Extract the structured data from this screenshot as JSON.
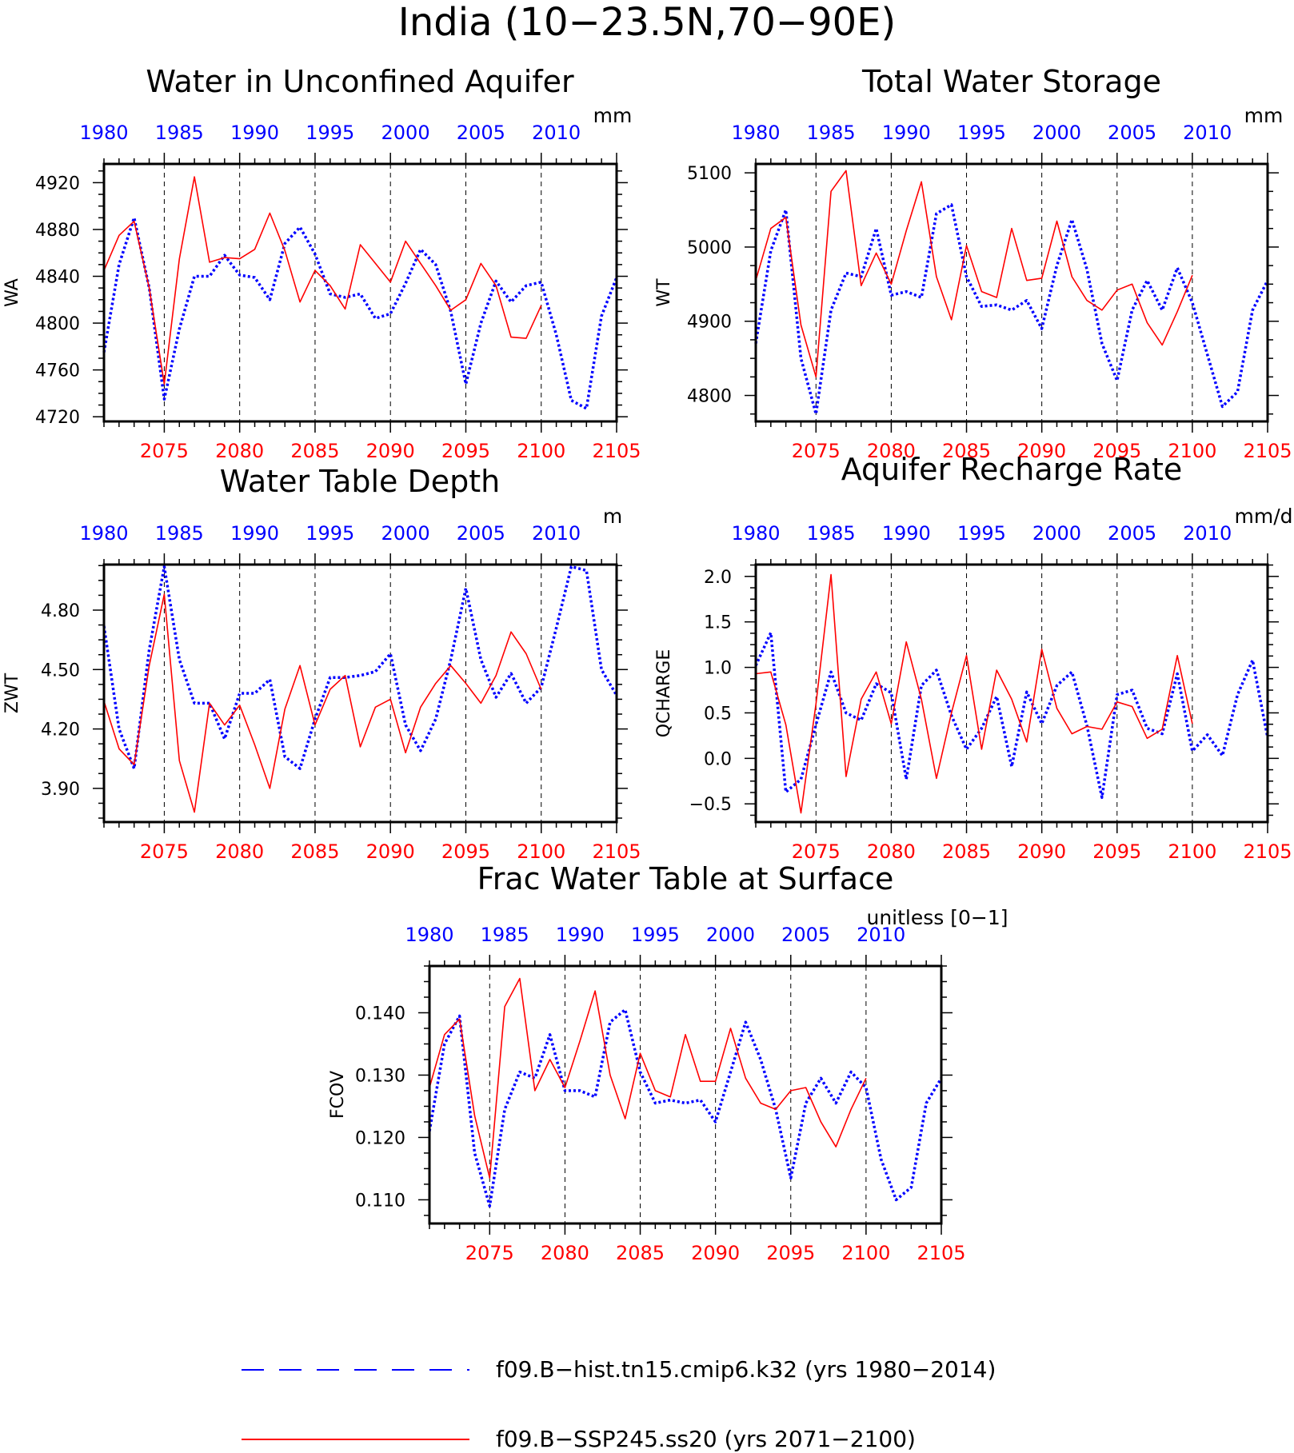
{
  "figure": {
    "title": "India (10−23.5N,70−90E)",
    "colors": {
      "hist": "#0000ff",
      "ssp": "#ff0000",
      "axis": "#000000"
    }
  },
  "legend": {
    "hist_label": "f09.B−hist.tn15.cmip6.k32 (yrs 1980−2014)",
    "ssp_label": "f09.B−SSP245.ss20 (yrs 2071−2100)"
  },
  "chart_data": [
    {
      "type": "line",
      "title": "Water in Unconfined Aquifer",
      "ylabel": "WA",
      "units": "mm",
      "ylim": [
        4716,
        4936
      ],
      "yticks": [
        4720,
        4760,
        4800,
        4840,
        4880,
        4920
      ],
      "ytick_labels": [
        "4720",
        "4760",
        "4800",
        "4840",
        "4880",
        "4920"
      ],
      "x_bottom": {
        "range": [
          2071,
          2105
        ],
        "ticks": [
          2075,
          2080,
          2085,
          2090,
          2095,
          2100,
          2105
        ]
      },
      "x_top": {
        "range": [
          1980,
          2014
        ],
        "ticks": [
          1980,
          1985,
          1990,
          1995,
          2000,
          2005,
          2010
        ]
      },
      "series": [
        {
          "name": "f09.B−hist.tn15.cmip6.k32 (yrs 1980−2014)",
          "style": "dotted",
          "color": "#0000ff",
          "x": [
            1980,
            1981,
            1982,
            1983,
            1984,
            1985,
            1986,
            1987,
            1988,
            1989,
            1990,
            1991,
            1992,
            1993,
            1994,
            1995,
            1996,
            1997,
            1998,
            1999,
            2000,
            2001,
            2002,
            2003,
            2004,
            2005,
            2006,
            2007,
            2008,
            2009,
            2010,
            2011,
            2012,
            2013,
            2014
          ],
          "values": [
            4775,
            4850,
            4890,
            4830,
            4735,
            4795,
            4840,
            4840,
            4858,
            4841,
            4839,
            4820,
            4868,
            4882,
            4859,
            4825,
            4822,
            4825,
            4804,
            4808,
            4834,
            4863,
            4850,
            4810,
            4748,
            4800,
            4836,
            4818,
            4832,
            4835,
            4790,
            4734,
            4727,
            4806,
            4839
          ]
        },
        {
          "name": "f09.B−SSP245.ss20 (yrs 2071−2100)",
          "style": "solid",
          "color": "#ff0000",
          "x": [
            2071,
            2072,
            2073,
            2074,
            2075,
            2076,
            2077,
            2078,
            2079,
            2080,
            2081,
            2082,
            2083,
            2084,
            2085,
            2086,
            2087,
            2088,
            2089,
            2090,
            2091,
            2092,
            2093,
            2094,
            2095,
            2096,
            2097,
            2098,
            2099,
            2100
          ],
          "values": [
            4845,
            4875,
            4887,
            4830,
            4748,
            4855,
            4925,
            4852,
            4856,
            4855,
            4863,
            4894,
            4862,
            4818,
            4845,
            4832,
            4812,
            4867,
            4851,
            4835,
            4870,
            4851,
            4832,
            4811,
            4820,
            4851,
            4832,
            4788,
            4787,
            4815
          ]
        }
      ]
    },
    {
      "type": "line",
      "title": "Total Water Storage",
      "ylabel": "WT",
      "units": "mm",
      "ylim": [
        4765,
        5112
      ],
      "yticks": [
        4800,
        4900,
        5000,
        5100
      ],
      "ytick_labels": [
        "4800",
        "4900",
        "5000",
        "5100"
      ],
      "x_bottom": {
        "range": [
          2071,
          2105
        ],
        "ticks": [
          2075,
          2080,
          2085,
          2090,
          2095,
          2100,
          2105
        ]
      },
      "x_top": {
        "range": [
          1980,
          2014
        ],
        "ticks": [
          1980,
          1985,
          1990,
          1995,
          2000,
          2005,
          2010
        ]
      },
      "series": [
        {
          "name": "f09.B−hist.tn15.cmip6.k32 (yrs 1980−2014)",
          "style": "dotted",
          "color": "#0000ff",
          "x": [
            1980,
            1981,
            1982,
            1983,
            1984,
            1985,
            1986,
            1987,
            1988,
            1989,
            1990,
            1991,
            1992,
            1993,
            1994,
            1995,
            1996,
            1997,
            1998,
            1999,
            2000,
            2001,
            2002,
            2003,
            2004,
            2005,
            2006,
            2007,
            2008,
            2009,
            2010,
            2011,
            2012,
            2013,
            2014
          ],
          "values": [
            4870,
            4995,
            5050,
            4850,
            4775,
            4915,
            4965,
            4960,
            5025,
            4935,
            4940,
            4932,
            5045,
            5057,
            4960,
            4920,
            4922,
            4915,
            4928,
            4890,
            4975,
            5037,
            4970,
            4870,
            4820,
            4915,
            4955,
            4915,
            4972,
            4925,
            4855,
            4785,
            4805,
            4915,
            4955
          ]
        },
        {
          "name": "f09.B−SSP245.ss20 (yrs 2071−2100)",
          "style": "solid",
          "color": "#ff0000",
          "x": [
            2071,
            2072,
            2073,
            2074,
            2075,
            2076,
            2077,
            2078,
            2079,
            2080,
            2081,
            2082,
            2083,
            2084,
            2085,
            2086,
            2087,
            2088,
            2089,
            2090,
            2091,
            2092,
            2093,
            2094,
            2095,
            2096,
            2097,
            2098,
            2099,
            2100
          ],
          "values": [
            4955,
            5025,
            5040,
            4895,
            4825,
            5075,
            5103,
            4948,
            4992,
            4950,
            5022,
            5088,
            4960,
            4902,
            5002,
            4940,
            4932,
            5025,
            4955,
            4958,
            5035,
            4960,
            4928,
            4915,
            4942,
            4950,
            4898,
            4868,
            4913,
            4962
          ]
        }
      ]
    },
    {
      "type": "line",
      "title": "Water Table Depth",
      "ylabel": "ZWT",
      "units": "m",
      "ylim": [
        3.73,
        5.03
      ],
      "yticks": [
        3.9,
        4.2,
        4.5,
        4.8
      ],
      "ytick_labels": [
        "3.90",
        "4.20",
        "4.50",
        "4.80"
      ],
      "x_bottom": {
        "range": [
          2071,
          2105
        ],
        "ticks": [
          2075,
          2080,
          2085,
          2090,
          2095,
          2100,
          2105
        ]
      },
      "x_top": {
        "range": [
          1980,
          2014
        ],
        "ticks": [
          1980,
          1985,
          1990,
          1995,
          2000,
          2005,
          2010
        ]
      },
      "series": [
        {
          "name": "f09.B−hist.tn15.cmip6.k32 (yrs 1980−2014)",
          "style": "dotted",
          "color": "#0000ff",
          "x": [
            1980,
            1981,
            1982,
            1983,
            1984,
            1985,
            1986,
            1987,
            1988,
            1989,
            1990,
            1991,
            1992,
            1993,
            1994,
            1995,
            1996,
            1997,
            1998,
            1999,
            2000,
            2001,
            2002,
            2003,
            2004,
            2005,
            2006,
            2007,
            2008,
            2009,
            2010,
            2011,
            2012,
            2013,
            2014
          ],
          "values": [
            4.72,
            4.2,
            4.0,
            4.6,
            5.02,
            4.55,
            4.33,
            4.33,
            4.15,
            4.38,
            4.38,
            4.45,
            4.06,
            4.0,
            4.25,
            4.46,
            4.46,
            4.47,
            4.49,
            4.58,
            4.22,
            4.09,
            4.25,
            4.55,
            4.91,
            4.55,
            4.36,
            4.48,
            4.33,
            4.41,
            4.71,
            5.02,
            5.0,
            4.5,
            4.37
          ]
        },
        {
          "name": "f09.B−SSP245.ss20 (yrs 2071−2100)",
          "style": "solid",
          "color": "#ff0000",
          "x": [
            2071,
            2072,
            2073,
            2074,
            2075,
            2076,
            2077,
            2078,
            2079,
            2080,
            2081,
            2082,
            2083,
            2084,
            2085,
            2086,
            2087,
            2088,
            2089,
            2090,
            2091,
            2092,
            2093,
            2094,
            2095,
            2096,
            2097,
            2098,
            2099,
            2100
          ],
          "values": [
            4.34,
            4.1,
            4.02,
            4.52,
            4.88,
            4.04,
            3.78,
            4.33,
            4.22,
            4.32,
            4.12,
            3.9,
            4.3,
            4.52,
            4.22,
            4.4,
            4.47,
            4.11,
            4.31,
            4.35,
            4.08,
            4.31,
            4.43,
            4.52,
            4.43,
            4.33,
            4.47,
            4.69,
            4.58,
            4.4
          ]
        }
      ]
    },
    {
      "type": "line",
      "title": "Aquifer Recharge Rate",
      "ylabel": "QCHARGE",
      "units": "mm/d",
      "ylim": [
        -0.7,
        2.13
      ],
      "yticks": [
        -0.5,
        0.0,
        0.5,
        1.0,
        1.5,
        2.0
      ],
      "ytick_labels": [
        "−0.5",
        "0.0",
        "0.5",
        "1.0",
        "1.5",
        "2.0"
      ],
      "x_bottom": {
        "range": [
          2071,
          2105
        ],
        "ticks": [
          2075,
          2080,
          2085,
          2090,
          2095,
          2100,
          2105
        ]
      },
      "x_top": {
        "range": [
          1980,
          2014
        ],
        "ticks": [
          1980,
          1985,
          1990,
          1995,
          2000,
          2005,
          2010
        ]
      },
      "series": [
        {
          "name": "f09.B−hist.tn15.cmip6.k32 (yrs 1980−2014)",
          "style": "dotted",
          "color": "#0000ff",
          "x": [
            1980,
            1981,
            1982,
            1983,
            1984,
            1985,
            1986,
            1987,
            1988,
            1989,
            1990,
            1991,
            1992,
            1993,
            1994,
            1995,
            1996,
            1997,
            1998,
            1999,
            2000,
            2001,
            2002,
            2003,
            2004,
            2005,
            2006,
            2007,
            2008,
            2009,
            2010,
            2011,
            2012,
            2013,
            2014
          ],
          "values": [
            1.02,
            1.38,
            -0.37,
            -0.23,
            0.37,
            0.95,
            0.5,
            0.42,
            0.82,
            0.72,
            -0.23,
            0.8,
            0.97,
            0.47,
            0.1,
            0.33,
            0.68,
            -0.09,
            0.73,
            0.38,
            0.8,
            0.95,
            0.36,
            -0.43,
            0.7,
            0.75,
            0.33,
            0.27,
            0.93,
            0.08,
            0.26,
            0.03,
            0.7,
            1.08,
            0.23
          ]
        },
        {
          "name": "f09.B−SSP245.ss20 (yrs 2071−2100)",
          "style": "solid",
          "color": "#ff0000",
          "x": [
            2071,
            2072,
            2073,
            2074,
            2075,
            2076,
            2077,
            2078,
            2079,
            2080,
            2081,
            2082,
            2083,
            2084,
            2085,
            2086,
            2087,
            2088,
            2089,
            2090,
            2091,
            2092,
            2093,
            2094,
            2095,
            2096,
            2097,
            2098,
            2099,
            2100
          ],
          "values": [
            0.93,
            0.95,
            0.37,
            -0.6,
            0.6,
            2.02,
            -0.2,
            0.65,
            0.95,
            0.38,
            1.28,
            0.65,
            -0.22,
            0.5,
            1.13,
            0.1,
            0.97,
            0.65,
            0.18,
            1.2,
            0.55,
            0.27,
            0.35,
            0.32,
            0.62,
            0.57,
            0.22,
            0.32,
            1.13,
            0.38
          ]
        }
      ]
    },
    {
      "type": "line",
      "title": "Frac Water Table at Surface",
      "ylabel": "FCOV",
      "units": "unitless [0−1]",
      "ylim": [
        0.1062,
        0.1475
      ],
      "yticks": [
        0.11,
        0.12,
        0.13,
        0.14
      ],
      "ytick_labels": [
        "0.110",
        "0.120",
        "0.130",
        "0.140"
      ],
      "x_bottom": {
        "range": [
          2071,
          2105
        ],
        "ticks": [
          2075,
          2080,
          2085,
          2090,
          2095,
          2100,
          2105
        ]
      },
      "x_top": {
        "range": [
          1980,
          2014
        ],
        "ticks": [
          1980,
          1985,
          1990,
          1995,
          2000,
          2005,
          2010
        ]
      },
      "series": [
        {
          "name": "f09.B−hist.tn15.cmip6.k32 (yrs 1980−2014)",
          "style": "dotted",
          "color": "#0000ff",
          "x": [
            1980,
            1981,
            1982,
            1983,
            1984,
            1985,
            1986,
            1987,
            1988,
            1989,
            1990,
            1991,
            1992,
            1993,
            1994,
            1995,
            1996,
            1997,
            1998,
            1999,
            2000,
            2001,
            2002,
            2003,
            2004,
            2005,
            2006,
            2007,
            2008,
            2009,
            2010,
            2011,
            2012,
            2013,
            2014
          ],
          "values": [
            0.121,
            0.135,
            0.1395,
            0.1175,
            0.109,
            0.1245,
            0.1305,
            0.1295,
            0.1365,
            0.1275,
            0.1275,
            0.1265,
            0.1385,
            0.1405,
            0.1305,
            0.1255,
            0.126,
            0.1255,
            0.126,
            0.1225,
            0.1305,
            0.1385,
            0.1325,
            0.1245,
            0.1135,
            0.1255,
            0.1295,
            0.1255,
            0.1305,
            0.128,
            0.1165,
            0.11,
            0.112,
            0.1255,
            0.1295
          ]
        },
        {
          "name": "f09.B−SSP245.ss20 (yrs 2071−2100)",
          "style": "solid",
          "color": "#ff0000",
          "x": [
            2071,
            2072,
            2073,
            2074,
            2075,
            2076,
            2077,
            2078,
            2079,
            2080,
            2081,
            2082,
            2083,
            2084,
            2085,
            2086,
            2087,
            2088,
            2089,
            2090,
            2091,
            2092,
            2093,
            2094,
            2095,
            2096,
            2097,
            2098,
            2099,
            2100
          ],
          "values": [
            0.128,
            0.1365,
            0.139,
            0.1235,
            0.1135,
            0.141,
            0.1455,
            0.1275,
            0.1325,
            0.128,
            0.1355,
            0.1435,
            0.13,
            0.123,
            0.1335,
            0.1275,
            0.1265,
            0.1365,
            0.129,
            0.129,
            0.1375,
            0.1295,
            0.1255,
            0.1245,
            0.1275,
            0.128,
            0.1225,
            0.1185,
            0.1245,
            0.1295
          ]
        }
      ]
    }
  ]
}
